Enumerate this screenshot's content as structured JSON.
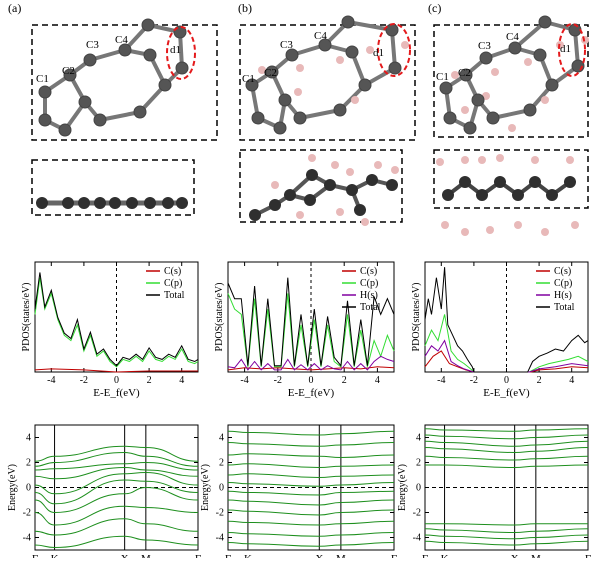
{
  "panel_labels": [
    "(a)",
    "(b)",
    "(c)"
  ],
  "atom_labels": {
    "a": [
      "C1",
      "C2",
      "C3",
      "C4",
      "d1"
    ],
    "b": [
      "C1",
      "C2",
      "C3",
      "C4",
      "d1"
    ],
    "c": [
      "C1",
      "C2",
      "C3",
      "C4",
      "d1"
    ]
  },
  "colors": {
    "carbon": "#555555",
    "carbon_side": "#2f2f2f",
    "hydrogen": "#e8b9b9",
    "d1_highlight": "#e41a1c",
    "band": "#1e8f1e",
    "cs": "#c00000",
    "cp": "#33dd33",
    "hs": "#8000a0",
    "total": "#000000"
  },
  "chart_data": [
    {
      "type": "line",
      "panel": "a-pdos",
      "ylabel": "PDOS(states/eV)",
      "xlabel": "E-E_f(eV)",
      "xlim": [
        -5,
        5
      ],
      "xticks": [
        -4,
        -2,
        0,
        2,
        4
      ],
      "fermi_line": 0,
      "legend": [
        "C(s)",
        "C(p)",
        "Total"
      ],
      "legend_position": "top-right",
      "series": [
        {
          "name": "C(s)",
          "x": [
            -5,
            -4,
            -2,
            0,
            2,
            4,
            5
          ],
          "y": [
            0.02,
            0.03,
            0.02,
            0.0,
            0.01,
            0.01,
            0.01
          ]
        },
        {
          "name": "C(p)",
          "x": [
            -5,
            -4.7,
            -4.4,
            -4,
            -3.6,
            -3.2,
            -2.8,
            -2.4,
            -2.0,
            -1.6,
            -1.2,
            -0.8,
            -0.4,
            0.0,
            0.4,
            0.8,
            1.2,
            1.6,
            2.0,
            2.4,
            2.8,
            3.2,
            3.6,
            4.0,
            4.4,
            4.8,
            5
          ],
          "y": [
            0.55,
            0.9,
            0.6,
            0.75,
            0.5,
            0.35,
            0.3,
            0.45,
            0.2,
            0.35,
            0.15,
            0.2,
            0.1,
            0.05,
            0.12,
            0.1,
            0.15,
            0.1,
            0.2,
            0.12,
            0.1,
            0.15,
            0.12,
            0.22,
            0.1,
            0.08,
            0.1
          ]
        },
        {
          "name": "Total",
          "x": [
            -5,
            -4.7,
            -4.4,
            -4,
            -3.6,
            -3.2,
            -2.8,
            -2.4,
            -2.0,
            -1.6,
            -1.2,
            -0.8,
            -0.4,
            0.0,
            0.4,
            0.8,
            1.2,
            1.6,
            2.0,
            2.4,
            2.8,
            3.2,
            3.6,
            4.0,
            4.4,
            4.8,
            5
          ],
          "y": [
            0.6,
            0.95,
            0.62,
            0.78,
            0.52,
            0.37,
            0.32,
            0.5,
            0.22,
            0.38,
            0.17,
            0.22,
            0.12,
            0.06,
            0.14,
            0.12,
            0.17,
            0.12,
            0.23,
            0.14,
            0.12,
            0.17,
            0.14,
            0.25,
            0.12,
            0.1,
            0.12
          ]
        }
      ]
    },
    {
      "type": "line",
      "panel": "b-pdos",
      "ylabel": "PDOS(states/eV)",
      "xlabel": "E-E_f(eV)",
      "xlim": [
        -5,
        5
      ],
      "xticks": [
        -4,
        -2,
        0,
        2,
        4
      ],
      "fermi_line": 0,
      "legend": [
        "C(s)",
        "C(p)",
        "H(s)",
        "Total"
      ],
      "legend_position": "top-right",
      "series": [
        {
          "name": "C(s)",
          "x": [
            -5,
            -4,
            -3,
            -2,
            -1,
            0,
            1,
            2,
            3,
            4,
            5
          ],
          "y": [
            0.02,
            0.04,
            0.03,
            0.04,
            0.03,
            0.02,
            0.03,
            0.04,
            0.03,
            0.05,
            0.04
          ]
        },
        {
          "name": "C(p)",
          "x": [
            -5,
            -4.6,
            -4.2,
            -3.8,
            -3.4,
            -3.0,
            -2.6,
            -2.2,
            -1.8,
            -1.4,
            -1.0,
            -0.6,
            -0.2,
            0.2,
            0.6,
            1.0,
            1.4,
            1.8,
            2.2,
            2.6,
            3.0,
            3.4,
            3.8,
            4.2,
            4.6,
            5
          ],
          "y": [
            0.75,
            0.6,
            0.55,
            0.05,
            0.7,
            0.05,
            0.6,
            0.05,
            0.05,
            0.75,
            0.05,
            0.45,
            0.05,
            0.5,
            0.05,
            0.45,
            0.1,
            0.05,
            0.55,
            0.05,
            0.4,
            0.05,
            0.3,
            0.15,
            0.35,
            0.2
          ]
        },
        {
          "name": "H(s)",
          "x": [
            -5,
            -4.6,
            -4.2,
            -3.8,
            -3.4,
            -3.0,
            -2.6,
            -2.2,
            -1.8,
            -1.4,
            -1.0,
            -0.6,
            -0.2,
            0.2,
            0.6,
            1.0,
            1.4,
            1.8,
            2.2,
            2.6,
            3.0,
            3.4,
            3.8,
            4.2,
            4.6,
            5
          ],
          "y": [
            0.05,
            0.04,
            0.12,
            0.02,
            0.1,
            0.02,
            0.08,
            0.02,
            0.02,
            0.12,
            0.02,
            0.07,
            0.02,
            0.08,
            0.02,
            0.06,
            0.03,
            0.02,
            0.1,
            0.02,
            0.08,
            0.02,
            0.1,
            0.15,
            0.12,
            0.1
          ]
        },
        {
          "name": "Total",
          "x": [
            -5,
            -4.6,
            -4.2,
            -3.8,
            -3.4,
            -3.0,
            -2.6,
            -2.2,
            -1.8,
            -1.4,
            -1.0,
            -0.6,
            -0.2,
            0.2,
            0.6,
            1.0,
            1.4,
            1.8,
            2.2,
            2.6,
            3.0,
            3.4,
            3.8,
            4.2,
            4.6,
            5
          ],
          "y": [
            0.85,
            0.7,
            0.7,
            0.06,
            0.82,
            0.06,
            0.7,
            0.06,
            0.06,
            0.9,
            0.06,
            0.55,
            0.06,
            0.6,
            0.06,
            0.53,
            0.14,
            0.06,
            0.68,
            0.06,
            0.5,
            0.06,
            0.72,
            0.55,
            0.7,
            0.55
          ]
        }
      ]
    },
    {
      "type": "line",
      "panel": "c-pdos",
      "ylabel": "PDOS(states/eV)",
      "xlabel": "E-E_f(eV)",
      "xlim": [
        -5,
        5
      ],
      "xticks": [
        -4,
        -2,
        0,
        2,
        4
      ],
      "fermi_line": 0,
      "legend": [
        "C(s)",
        "C(p)",
        "H(s)",
        "Total"
      ],
      "legend_position": "top-right",
      "series": [
        {
          "name": "C(s)",
          "x": [
            -5,
            -4.5,
            -4,
            -3.5,
            -3,
            -2.5,
            -2,
            0,
            1.5,
            2,
            3,
            4,
            5
          ],
          "y": [
            0.05,
            0.15,
            0.2,
            0.08,
            0.05,
            0.02,
            0.0,
            0.0,
            0.0,
            0.02,
            0.03,
            0.05,
            0.04
          ]
        },
        {
          "name": "C(p)",
          "x": [
            -5,
            -4.6,
            -4.2,
            -3.8,
            -3.4,
            -3.0,
            -2.6,
            -2.2,
            -2.0,
            0,
            1.4,
            2.0,
            2.6,
            3.2,
            3.8,
            4.4,
            5
          ],
          "y": [
            0.25,
            0.4,
            0.3,
            0.55,
            0.2,
            0.12,
            0.08,
            0.03,
            0.0,
            0.0,
            0.0,
            0.05,
            0.08,
            0.1,
            0.12,
            0.15,
            0.1
          ]
        },
        {
          "name": "H(s)",
          "x": [
            -5,
            -4.6,
            -4.2,
            -3.8,
            -3.4,
            -3.0,
            -2.6,
            -2.2,
            -2.0,
            0,
            1.4,
            2.0,
            3.0,
            4.0,
            5
          ],
          "y": [
            0.15,
            0.25,
            0.2,
            0.3,
            0.1,
            0.06,
            0.03,
            0.01,
            0.0,
            0.0,
            0.0,
            0.03,
            0.05,
            0.08,
            0.06
          ]
        },
        {
          "name": "Total",
          "x": [
            -5,
            -4.8,
            -4.6,
            -4.3,
            -4.0,
            -3.8,
            -3.6,
            -3.3,
            -3.0,
            -2.7,
            -2.4,
            -2.1,
            -2.0,
            0,
            1.3,
            1.6,
            2.0,
            2.5,
            3.0,
            3.5,
            4.0,
            4.4,
            4.8,
            5
          ],
          "y": [
            0.5,
            0.7,
            0.55,
            0.9,
            0.6,
            1.0,
            0.45,
            0.35,
            0.25,
            0.2,
            0.12,
            0.05,
            0.0,
            0.0,
            0.0,
            0.1,
            0.15,
            0.18,
            0.22,
            0.2,
            0.3,
            0.35,
            0.28,
            0.3
          ]
        }
      ]
    },
    {
      "type": "line",
      "panel": "a-bands",
      "ylabel": "Energy(eV)",
      "ylim": [
        -5,
        5
      ],
      "yticks": [
        -4,
        -2,
        0,
        2,
        4
      ],
      "fermi_line": 0,
      "kpoints": [
        "Γ",
        "K",
        "X",
        "M",
        "Γ"
      ],
      "kpos": [
        0,
        0.12,
        0.55,
        0.68,
        1.0
      ],
      "series": [
        {
          "y": [
            2.1,
            2.5,
            3.3,
            3.2,
            2.1
          ]
        },
        {
          "y": [
            1.7,
            2.0,
            2.8,
            2.5,
            1.7
          ]
        },
        {
          "y": [
            1.4,
            1.5,
            1.9,
            2.0,
            1.4
          ]
        },
        {
          "y": [
            0.9,
            0.7,
            1.6,
            1.4,
            0.9
          ]
        },
        {
          "y": [
            0.2,
            -0.5,
            1.1,
            1.2,
            0.2
          ]
        },
        {
          "y": [
            -0.4,
            -1.3,
            0.6,
            0.5,
            -0.4
          ]
        },
        {
          "y": [
            -1.0,
            -2.0,
            -0.5,
            0.0,
            -1.0
          ]
        },
        {
          "y": [
            -2.0,
            -3.0,
            -1.5,
            -1.6,
            -2.0
          ]
        },
        {
          "y": [
            -3.5,
            -3.8,
            -2.5,
            -2.9,
            -3.5
          ]
        },
        {
          "y": [
            -4.6,
            -4.8,
            -3.9,
            -4.2,
            -4.6
          ]
        }
      ]
    },
    {
      "type": "line",
      "panel": "b-bands",
      "ylabel": "Energy(eV)",
      "ylim": [
        -5,
        5
      ],
      "yticks": [
        -4,
        -2,
        0,
        2,
        4
      ],
      "fermi_line": 0,
      "kpoints": [
        "Γ",
        "K",
        "X",
        "M",
        "Γ"
      ],
      "kpos": [
        0,
        0.12,
        0.55,
        0.68,
        1.0
      ],
      "series": [
        {
          "y": [
            4.5,
            4.4,
            4.2,
            4.3,
            4.5
          ]
        },
        {
          "y": [
            3.6,
            3.5,
            3.3,
            3.4,
            3.6
          ]
        },
        {
          "y": [
            2.6,
            2.7,
            2.5,
            2.4,
            2.6
          ]
        },
        {
          "y": [
            1.8,
            1.9,
            1.6,
            1.7,
            1.8
          ]
        },
        {
          "y": [
            1.0,
            1.1,
            0.8,
            0.9,
            1.0
          ]
        },
        {
          "y": [
            0.4,
            0.3,
            0.1,
            0.2,
            0.4
          ]
        },
        {
          "y": [
            -0.3,
            -0.4,
            -0.6,
            -0.4,
            -0.3
          ]
        },
        {
          "y": [
            -1.0,
            -1.1,
            -1.4,
            -1.2,
            -1.0
          ]
        },
        {
          "y": [
            -1.8,
            -1.9,
            -2.2,
            -2.0,
            -1.8
          ]
        },
        {
          "y": [
            -2.7,
            -2.8,
            -3.0,
            -2.9,
            -2.7
          ]
        },
        {
          "y": [
            -3.6,
            -3.7,
            -3.9,
            -3.8,
            -3.6
          ]
        },
        {
          "y": [
            -4.4,
            -4.5,
            -4.7,
            -4.6,
            -4.4
          ]
        }
      ]
    },
    {
      "type": "line",
      "panel": "c-bands",
      "ylabel": "Energy(eV)",
      "ylim": [
        -5,
        5
      ],
      "yticks": [
        -4,
        -2,
        0,
        2,
        4
      ],
      "fermi_line": 0,
      "kpoints": [
        "Γ",
        "K",
        "X",
        "M",
        "Γ"
      ],
      "kpos": [
        0,
        0.12,
        0.55,
        0.68,
        1.0
      ],
      "series": [
        {
          "y": [
            4.7,
            4.6,
            4.5,
            4.6,
            4.7
          ]
        },
        {
          "y": [
            4.2,
            4.1,
            3.9,
            4.0,
            4.2
          ]
        },
        {
          "y": [
            3.7,
            3.6,
            3.3,
            3.4,
            3.7
          ]
        },
        {
          "y": [
            3.2,
            3.1,
            2.8,
            2.9,
            3.2
          ]
        },
        {
          "y": [
            2.5,
            2.4,
            2.2,
            2.3,
            2.5
          ]
        },
        {
          "y": [
            1.8,
            1.8,
            1.6,
            1.7,
            1.8
          ]
        },
        {
          "y": [
            -2.9,
            -2.9,
            -3.0,
            -2.9,
            -2.9
          ]
        },
        {
          "y": [
            -3.3,
            -3.4,
            -3.6,
            -3.5,
            -3.3
          ]
        },
        {
          "y": [
            -3.8,
            -3.9,
            -4.1,
            -4.0,
            -3.8
          ]
        },
        {
          "y": [
            -4.3,
            -4.4,
            -4.6,
            -4.5,
            -4.3
          ]
        }
      ]
    }
  ]
}
